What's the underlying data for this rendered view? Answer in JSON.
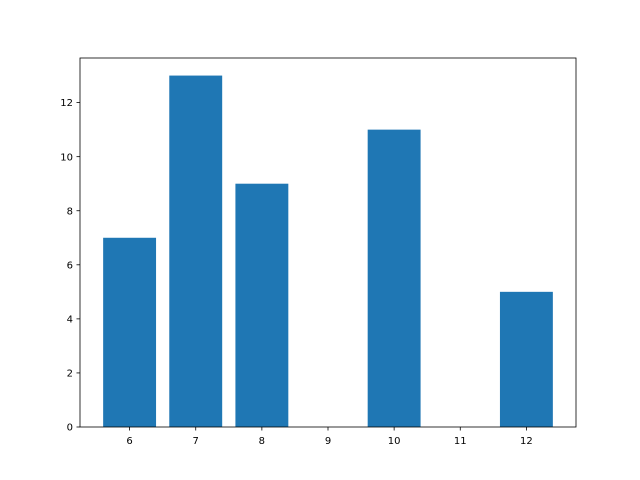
{
  "chart_data": {
    "type": "bar",
    "title": "",
    "xlabel": "",
    "ylabel": "",
    "categories": [
      6,
      7,
      8,
      9,
      10,
      11,
      12
    ],
    "values": [
      7,
      13,
      9,
      0,
      11,
      0,
      5
    ],
    "bar_width": 0.8,
    "xlim": [
      5.25,
      12.75
    ],
    "ylim": [
      0,
      13.65
    ],
    "xticks": [
      "6",
      "7",
      "8",
      "9",
      "10",
      "11",
      "12"
    ],
    "yticks": [
      "0",
      "2",
      "4",
      "6",
      "8",
      "10",
      "12"
    ],
    "grid": false,
    "legend": "none",
    "bar_color": "#1f77b4"
  }
}
